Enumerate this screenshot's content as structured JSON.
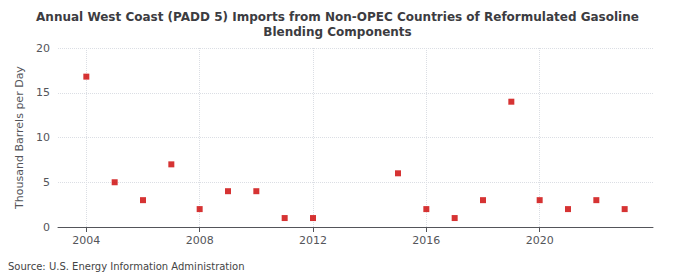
{
  "chart_data": {
    "type": "scatter",
    "title": "Annual West Coast (PADD 5) Imports from Non-OPEC Countries of Reformulated Gasoline\nBlending Components",
    "ylabel": "Thousand Barrels per Day",
    "source": "Source: U.S. Energy Information Administration",
    "x": [
      2004,
      2005,
      2006,
      2007,
      2008,
      2009,
      2010,
      2011,
      2012,
      2015,
      2016,
      2017,
      2018,
      2019,
      2020,
      2021,
      2022,
      2023
    ],
    "values": [
      16.8,
      5.0,
      3.0,
      7.0,
      2.0,
      4.0,
      4.0,
      1.0,
      1.0,
      6.0,
      2.0,
      1.0,
      3.0,
      14.0,
      3.0,
      2.0,
      3.0,
      2.0
    ],
    "color": "#cc0000",
    "marker": "square",
    "xlim": [
      2003.0,
      2024.0
    ],
    "xticks": [
      2004,
      2008,
      2012,
      2016,
      2020
    ],
    "ylim": [
      0,
      20
    ],
    "yticks": [
      0,
      5,
      10,
      15,
      20
    ],
    "grid": true
  }
}
